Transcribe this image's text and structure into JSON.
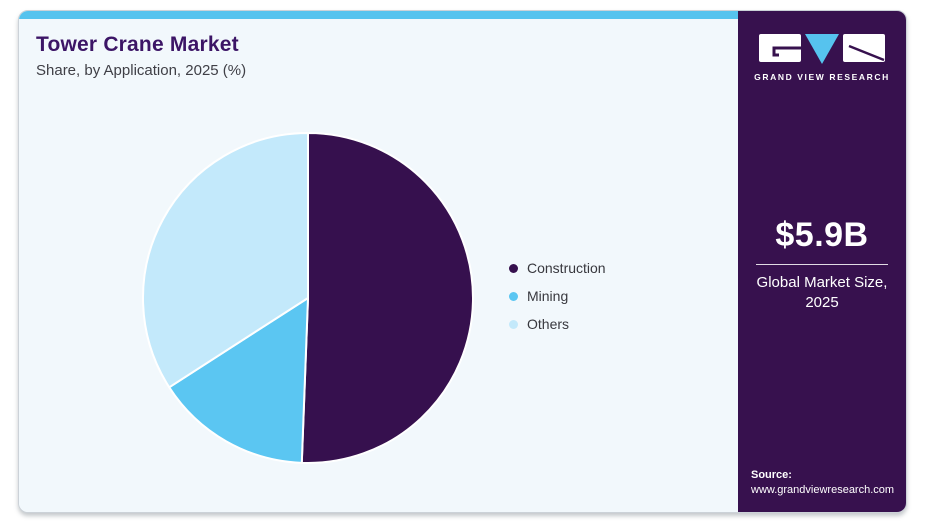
{
  "header": {
    "title": "Tower Crane Market",
    "subtitle": "Share, by Application, 2025 (%)"
  },
  "chart_data": {
    "type": "pie",
    "title": "Tower Crane Market Share, by Application, 2025 (%)",
    "unit": "%",
    "direction": "clockwise",
    "start_angle_deg": 0,
    "legend_position": "right",
    "series": [
      {
        "name": "Construction",
        "value": 50.6,
        "color": "#36104e"
      },
      {
        "name": "Mining",
        "value": 15.3,
        "color": "#5bc6f2"
      },
      {
        "name": "Others",
        "value": 34.1,
        "color": "#c3e9fb"
      }
    ]
  },
  "sidebar": {
    "brand": "GRAND VIEW RESEARCH",
    "market_size": "$5.9B",
    "market_label_line1": "Global Market Size,",
    "market_label_line2": "2025",
    "source_label": "Source:",
    "source_url": "www.grandviewresearch.com"
  },
  "colors": {
    "accent_bar": "#56c3ee",
    "sidebar_bg": "#37114e",
    "panel_bg": "#f2f8fc",
    "title": "#3c1566",
    "slice_stroke": "#ffffff"
  }
}
